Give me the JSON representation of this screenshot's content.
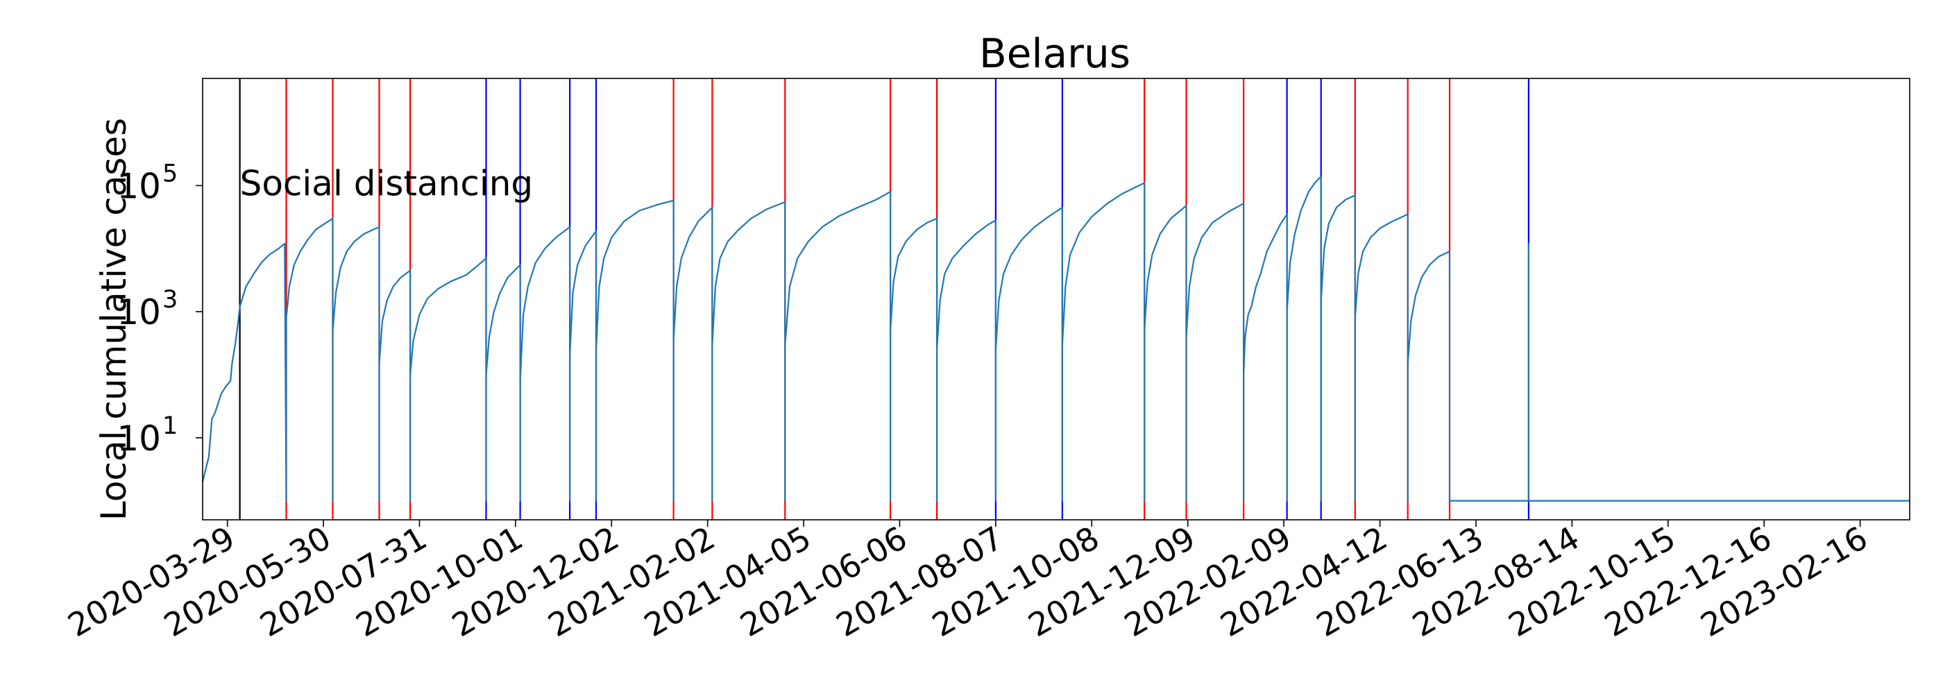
{
  "chart_data": {
    "type": "line",
    "title": "Belarus",
    "xlabel": "",
    "ylabel": "Local cumulative cases",
    "y_scale": "log",
    "ylim": [
      0.5,
      5000000
    ],
    "xlim": [
      "2020-03-13",
      "2023-03-20"
    ],
    "grid": false,
    "legend": "none",
    "line_color": "#1f77b4",
    "x_ticks": [
      "2020-03-29",
      "2020-05-30",
      "2020-07-31",
      "2020-10-01",
      "2020-12-02",
      "2021-02-02",
      "2021-04-05",
      "2021-06-06",
      "2021-08-07",
      "2021-10-08",
      "2021-12-09",
      "2022-02-09",
      "2022-04-12",
      "2022-06-13",
      "2022-08-14",
      "2022-10-15",
      "2022-12-16",
      "2023-02-16"
    ],
    "y_ticks": [
      {
        "value": 10,
        "base": "10",
        "exp": "1"
      },
      {
        "value": 1000,
        "base": "10",
        "exp": "3"
      },
      {
        "value": 100000,
        "base": "10",
        "exp": "5"
      }
    ],
    "annotations": [
      {
        "text": "Social distancing",
        "date": "2020-04-06",
        "value": 70000
      }
    ],
    "vertical_lines": [
      {
        "date": "2020-04-06",
        "color": "#000000"
      },
      {
        "date": "2020-05-06",
        "color": "#ff0000"
      },
      {
        "date": "2020-06-05",
        "color": "#ff0000"
      },
      {
        "date": "2020-07-05",
        "color": "#ff0000"
      },
      {
        "date": "2020-07-25",
        "color": "#ff0000"
      },
      {
        "date": "2020-09-12",
        "color": "#0000ff"
      },
      {
        "date": "2020-10-04",
        "color": "#0000ff"
      },
      {
        "date": "2020-11-05",
        "color": "#0000ff"
      },
      {
        "date": "2020-11-22",
        "color": "#0000ff"
      },
      {
        "date": "2021-01-11",
        "color": "#ff0000"
      },
      {
        "date": "2021-02-05",
        "color": "#ff0000"
      },
      {
        "date": "2021-03-24",
        "color": "#ff0000"
      },
      {
        "date": "2021-05-31",
        "color": "#ff0000"
      },
      {
        "date": "2021-06-30",
        "color": "#ff0000"
      },
      {
        "date": "2021-08-07",
        "color": "#0000ff"
      },
      {
        "date": "2021-09-19",
        "color": "#0000ff"
      },
      {
        "date": "2021-11-11",
        "color": "#ff0000"
      },
      {
        "date": "2021-12-08",
        "color": "#ff0000"
      },
      {
        "date": "2022-01-14",
        "color": "#ff0000"
      },
      {
        "date": "2022-02-11",
        "color": "#0000ff"
      },
      {
        "date": "2022-03-05",
        "color": "#0000ff"
      },
      {
        "date": "2022-03-27",
        "color": "#ff0000"
      },
      {
        "date": "2022-04-30",
        "color": "#ff0000"
      },
      {
        "date": "2022-05-27",
        "color": "#ff0000"
      },
      {
        "date": "2022-07-17",
        "color": "#0000ff"
      }
    ],
    "series": [
      {
        "values": [
          [
            "2020-03-13",
            2
          ],
          [
            "2020-03-16",
            4
          ],
          [
            "2020-03-17",
            5
          ],
          [
            "2020-03-19",
            20
          ],
          [
            "2020-03-21",
            25
          ],
          [
            "2020-03-23",
            35
          ],
          [
            "2020-03-25",
            50
          ],
          [
            "2020-03-28",
            65
          ],
          [
            "2020-03-31",
            80
          ],
          [
            "2020-04-01",
            150
          ],
          [
            "2020-04-03",
            300
          ],
          [
            "2020-04-05",
            700
          ],
          [
            "2020-04-06",
            1200
          ],
          [
            "2020-04-10",
            2500
          ],
          [
            "2020-04-15",
            4000
          ],
          [
            "2020-04-20",
            6000
          ],
          [
            "2020-04-25",
            8000
          ],
          [
            "2020-05-01",
            10000
          ],
          [
            "2020-05-05",
            12000
          ],
          [
            "2020-05-06",
            1
          ],
          [
            "2020-05-06",
            800
          ],
          [
            "2020-05-08",
            2500
          ],
          [
            "2020-05-11",
            5500
          ],
          [
            "2020-05-15",
            9000
          ],
          [
            "2020-05-20",
            14000
          ],
          [
            "2020-05-25",
            20000
          ],
          [
            "2020-06-01",
            26000
          ],
          [
            "2020-06-05",
            30000
          ],
          [
            "2020-06-05",
            1
          ],
          [
            "2020-06-05",
            500
          ],
          [
            "2020-06-07",
            2000
          ],
          [
            "2020-06-10",
            5000
          ],
          [
            "2020-06-14",
            9000
          ],
          [
            "2020-06-19",
            13000
          ],
          [
            "2020-06-25",
            17000
          ],
          [
            "2020-07-01",
            20000
          ],
          [
            "2020-07-05",
            22000
          ],
          [
            "2020-07-05",
            1
          ],
          [
            "2020-07-05",
            150
          ],
          [
            "2020-07-07",
            700
          ],
          [
            "2020-07-10",
            1500
          ],
          [
            "2020-07-14",
            2500
          ],
          [
            "2020-07-19",
            3500
          ],
          [
            "2020-07-25",
            4500
          ],
          [
            "2020-07-25",
            1
          ],
          [
            "2020-07-25",
            100
          ],
          [
            "2020-07-27",
            350
          ],
          [
            "2020-07-31",
            900
          ],
          [
            "2020-08-05",
            1600
          ],
          [
            "2020-08-12",
            2300
          ],
          [
            "2020-08-20",
            3000
          ],
          [
            "2020-08-30",
            3800
          ],
          [
            "2020-09-05",
            5000
          ],
          [
            "2020-09-12",
            7000
          ],
          [
            "2020-09-12",
            1
          ],
          [
            "2020-09-12",
            100
          ],
          [
            "2020-09-14",
            400
          ],
          [
            "2020-09-17",
            1000
          ],
          [
            "2020-09-21",
            2000
          ],
          [
            "2020-09-26",
            3500
          ],
          [
            "2020-10-04",
            5500
          ],
          [
            "2020-10-04",
            1
          ],
          [
            "2020-10-04",
            80
          ],
          [
            "2020-10-06",
            900
          ],
          [
            "2020-10-09",
            2500
          ],
          [
            "2020-10-14",
            6000
          ],
          [
            "2020-10-20",
            10000
          ],
          [
            "2020-10-27",
            15000
          ],
          [
            "2020-11-05",
            22000
          ],
          [
            "2020-11-05",
            1
          ],
          [
            "2020-11-05",
            200
          ],
          [
            "2020-11-07",
            2000
          ],
          [
            "2020-11-10",
            5500
          ],
          [
            "2020-11-15",
            11000
          ],
          [
            "2020-11-22",
            19000
          ],
          [
            "2020-11-22",
            1
          ],
          [
            "2020-11-22",
            250
          ],
          [
            "2020-11-24",
            2500
          ],
          [
            "2020-11-27",
            7000
          ],
          [
            "2020-12-02",
            15000
          ],
          [
            "2020-12-10",
            27000
          ],
          [
            "2020-12-20",
            40000
          ],
          [
            "2021-01-01",
            50000
          ],
          [
            "2021-01-11",
            58000
          ],
          [
            "2021-01-11",
            1
          ],
          [
            "2021-01-11",
            350
          ],
          [
            "2021-01-13",
            2500
          ],
          [
            "2021-01-16",
            7000
          ],
          [
            "2021-01-21",
            15000
          ],
          [
            "2021-01-27",
            27000
          ],
          [
            "2021-02-05",
            45000
          ],
          [
            "2021-02-05",
            1
          ],
          [
            "2021-02-05",
            300
          ],
          [
            "2021-02-07",
            2500
          ],
          [
            "2021-02-10",
            7000
          ],
          [
            "2021-02-15",
            13000
          ],
          [
            "2021-02-22",
            20000
          ],
          [
            "2021-03-02",
            30000
          ],
          [
            "2021-03-12",
            42000
          ],
          [
            "2021-03-24",
            55000
          ],
          [
            "2021-03-24",
            1
          ],
          [
            "2021-03-24",
            300
          ],
          [
            "2021-03-27",
            2500
          ],
          [
            "2021-04-01",
            7000
          ],
          [
            "2021-04-08",
            13000
          ],
          [
            "2021-04-17",
            22000
          ],
          [
            "2021-04-28",
            33000
          ],
          [
            "2021-05-10",
            45000
          ],
          [
            "2021-05-22",
            60000
          ],
          [
            "2021-05-31",
            80000
          ],
          [
            "2021-05-31",
            1
          ],
          [
            "2021-05-31",
            500
          ],
          [
            "2021-06-02",
            3000
          ],
          [
            "2021-06-05",
            7500
          ],
          [
            "2021-06-10",
            13000
          ],
          [
            "2021-06-17",
            20000
          ],
          [
            "2021-06-24",
            26000
          ],
          [
            "2021-06-30",
            30000
          ],
          [
            "2021-06-30",
            1
          ],
          [
            "2021-06-30",
            250
          ],
          [
            "2021-07-02",
            1500
          ],
          [
            "2021-07-05",
            4000
          ],
          [
            "2021-07-10",
            7000
          ],
          [
            "2021-07-17",
            11000
          ],
          [
            "2021-07-25",
            17000
          ],
          [
            "2021-08-02",
            24000
          ],
          [
            "2021-08-07",
            28000
          ],
          [
            "2021-08-07",
            1
          ],
          [
            "2021-08-07",
            250
          ],
          [
            "2021-08-09",
            1500
          ],
          [
            "2021-08-12",
            4000
          ],
          [
            "2021-08-17",
            8000
          ],
          [
            "2021-08-24",
            14000
          ],
          [
            "2021-09-01",
            22000
          ],
          [
            "2021-09-10",
            32000
          ],
          [
            "2021-09-19",
            45000
          ],
          [
            "2021-09-19",
            1
          ],
          [
            "2021-09-19",
            300
          ],
          [
            "2021-09-21",
            2500
          ],
          [
            "2021-09-24",
            8000
          ],
          [
            "2021-09-30",
            18000
          ],
          [
            "2021-10-08",
            32000
          ],
          [
            "2021-10-18",
            52000
          ],
          [
            "2021-10-28",
            75000
          ],
          [
            "2021-11-11",
            110000
          ],
          [
            "2021-11-11",
            1
          ],
          [
            "2021-11-11",
            500
          ],
          [
            "2021-11-13",
            3000
          ],
          [
            "2021-11-16",
            8000
          ],
          [
            "2021-11-21",
            17000
          ],
          [
            "2021-11-28",
            30000
          ],
          [
            "2021-12-08",
            48000
          ],
          [
            "2021-12-08",
            1
          ],
          [
            "2021-12-08",
            400
          ],
          [
            "2021-12-10",
            2500
          ],
          [
            "2021-12-13",
            7000
          ],
          [
            "2021-12-18",
            15000
          ],
          [
            "2021-12-25",
            26000
          ],
          [
            "2022-01-04",
            38000
          ],
          [
            "2022-01-14",
            52000
          ],
          [
            "2022-01-14",
            1
          ],
          [
            "2022-01-14",
            100
          ],
          [
            "2022-01-15",
            400
          ],
          [
            "2022-01-17",
            900
          ],
          [
            "2022-01-19",
            1200
          ],
          [
            "2022-01-22",
            2500
          ],
          [
            "2022-01-25",
            4000
          ],
          [
            "2022-01-29",
            9000
          ],
          [
            "2022-02-03",
            16000
          ],
          [
            "2022-02-07",
            25000
          ],
          [
            "2022-02-11",
            35000
          ],
          [
            "2022-02-11",
            1
          ],
          [
            "2022-02-11",
            1000
          ],
          [
            "2022-02-13",
            6000
          ],
          [
            "2022-02-16",
            17000
          ],
          [
            "2022-02-20",
            40000
          ],
          [
            "2022-02-25",
            80000
          ],
          [
            "2022-03-01",
            110000
          ],
          [
            "2022-03-05",
            140000
          ],
          [
            "2022-03-05",
            1
          ],
          [
            "2022-03-05",
            1500
          ],
          [
            "2022-03-07",
            10000
          ],
          [
            "2022-03-10",
            25000
          ],
          [
            "2022-03-15",
            45000
          ],
          [
            "2022-03-21",
            60000
          ],
          [
            "2022-03-27",
            70000
          ],
          [
            "2022-03-27",
            1
          ],
          [
            "2022-03-27",
            800
          ],
          [
            "2022-03-29",
            4000
          ],
          [
            "2022-04-01",
            9000
          ],
          [
            "2022-04-06",
            15000
          ],
          [
            "2022-04-12",
            21000
          ],
          [
            "2022-04-20",
            27000
          ],
          [
            "2022-04-30",
            35000
          ],
          [
            "2022-04-30",
            1
          ],
          [
            "2022-04-30",
            150
          ],
          [
            "2022-05-02",
            700
          ],
          [
            "2022-05-05",
            1800
          ],
          [
            "2022-05-09",
            3500
          ],
          [
            "2022-05-14",
            5500
          ],
          [
            "2022-05-20",
            7500
          ],
          [
            "2022-05-27",
            9000
          ],
          [
            "2022-05-27",
            1
          ],
          [
            "2022-05-27",
            1
          ],
          [
            "2022-07-17",
            1
          ],
          [
            "2022-07-17",
            12000
          ],
          [
            "2022-07-17",
            1
          ],
          [
            "2023-03-20",
            1
          ]
        ]
      }
    ]
  }
}
